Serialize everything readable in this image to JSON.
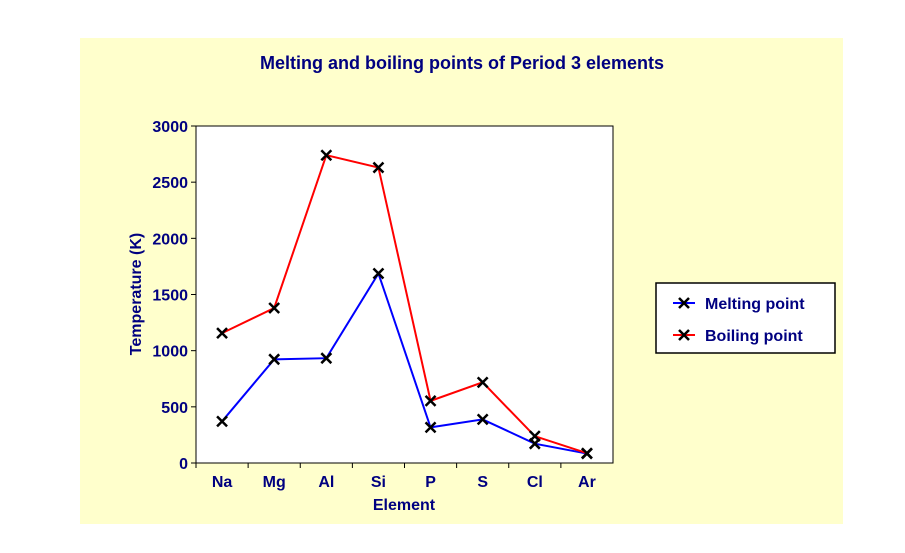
{
  "chart_data": {
    "type": "line",
    "title": "Melting and boiling points of Period 3 elements",
    "xlabel": "Element",
    "ylabel": "Temperature (K)",
    "categories": [
      "Na",
      "Mg",
      "Al",
      "Si",
      "P",
      "S",
      "Cl",
      "Ar"
    ],
    "ylim": [
      0,
      3000
    ],
    "yticks": [
      0,
      500,
      1000,
      1500,
      2000,
      2500,
      3000
    ],
    "grid": false,
    "legend_position": "right",
    "series": [
      {
        "name": "Melting point",
        "color": "#0000ff",
        "values": [
          371,
          923,
          933,
          1687,
          317,
          388,
          172,
          84
        ]
      },
      {
        "name": "Boiling point",
        "color": "#ff0000",
        "values": [
          1156,
          1380,
          2740,
          2630,
          553,
          718,
          239,
          87
        ]
      }
    ]
  }
}
